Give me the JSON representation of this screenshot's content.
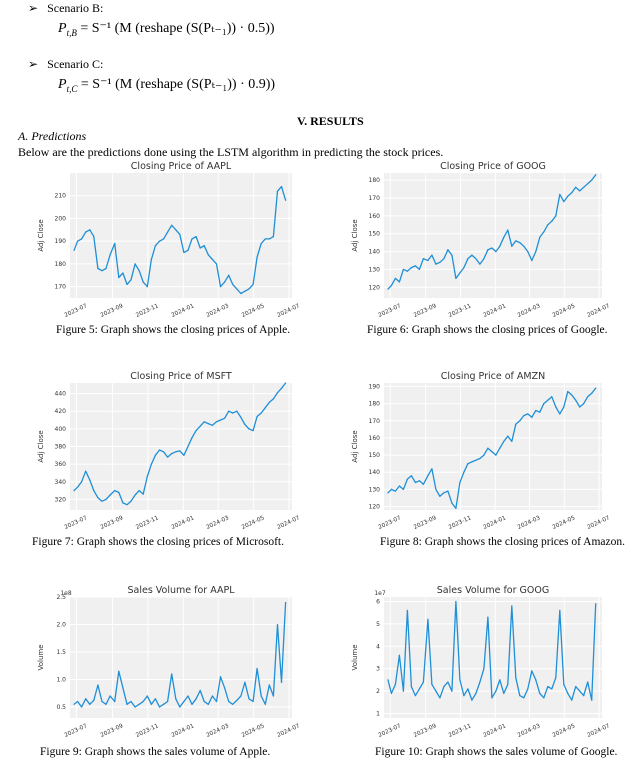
{
  "scenarios": [
    {
      "bullet": "➢",
      "label": "Scenario B:",
      "eq_lhs": "P",
      "eq_lhs_sub": "t,B",
      "eq_rhs": "= S⁻¹ (M (reshape (S(Pₜ₋₁)) · 0.5))"
    },
    {
      "bullet": "➢",
      "label": "Scenario C:",
      "eq_lhs": "P",
      "eq_lhs_sub": "t,C",
      "eq_rhs": "= S⁻¹ (M (reshape (S(Pₜ₋₁)) · 0.9))"
    }
  ],
  "section_heading": "V. RESULTS",
  "subsection": "A.  Predictions",
  "intro": "Below are the predictions done using the LSTM algorithm in predicting the stock prices.",
  "x_ticks": [
    "2023-07",
    "2023-09",
    "2023-11",
    "2024-01",
    "2024-03",
    "2024-05",
    "2024-07"
  ],
  "colors": {
    "line": "#1f8fd6",
    "panel": "#f0f0f0",
    "grid": "#ffffff",
    "text": "#333333"
  },
  "captions": [
    "Figure 5: Graph shows the closing prices of Apple.",
    "Figure 6: Graph shows the closing prices of Google.",
    "Figure 7: Graph shows the closing prices of Microsoft.",
    "Figure 8: Graph shows the closing prices of Amazon.",
    "Figure 9: Graph shows the sales volume of Apple.",
    "Figure 10: Graph shows the sales volume of Google."
  ],
  "chart_data": [
    {
      "type": "line",
      "title": "Closing Price of AAPL",
      "ylabel": "Adj Close",
      "xlabel": "",
      "ylim": [
        165,
        220
      ],
      "yticks": [
        170,
        180,
        190,
        200,
        210
      ],
      "multiplier": "",
      "x": [
        "2023-06-27",
        "2023-07-03",
        "2023-07-10",
        "2023-07-17",
        "2023-07-24",
        "2023-07-31",
        "2023-08-07",
        "2023-08-14",
        "2023-08-21",
        "2023-08-28",
        "2023-09-05",
        "2023-09-12",
        "2023-09-19",
        "2023-09-26",
        "2023-10-03",
        "2023-10-10",
        "2023-10-17",
        "2023-10-24",
        "2023-10-31",
        "2023-11-07",
        "2023-11-14",
        "2023-11-21",
        "2023-11-28",
        "2023-12-05",
        "2023-12-12",
        "2023-12-19",
        "2023-12-26",
        "2024-01-02",
        "2024-01-09",
        "2024-01-16",
        "2024-01-23",
        "2024-01-30",
        "2024-02-06",
        "2024-02-13",
        "2024-02-20",
        "2024-02-27",
        "2024-03-05",
        "2024-03-12",
        "2024-03-19",
        "2024-03-26",
        "2024-04-02",
        "2024-04-09",
        "2024-04-16",
        "2024-04-23",
        "2024-04-30",
        "2024-05-07",
        "2024-05-14",
        "2024-05-21",
        "2024-05-28",
        "2024-06-04",
        "2024-06-11",
        "2024-06-18",
        "2024-06-25"
      ],
      "values": [
        186,
        190,
        191,
        194,
        195,
        192,
        178,
        177,
        178,
        184,
        189,
        174,
        176,
        171,
        173,
        180,
        177,
        172,
        170,
        182,
        188,
        190,
        191,
        194,
        197,
        195,
        193,
        185,
        186,
        191,
        192,
        187,
        188,
        184,
        182,
        180,
        170,
        172,
        175,
        171,
        169,
        167,
        168,
        169,
        171,
        183,
        189,
        191,
        191,
        192,
        212,
        214,
        208
      ]
    },
    {
      "type": "line",
      "title": "Closing Price of GOOG",
      "ylabel": "Adj Close",
      "xlabel": "",
      "ylim": [
        114,
        184
      ],
      "yticks": [
        120,
        130,
        140,
        150,
        160,
        170,
        180
      ],
      "multiplier": "",
      "x": [
        "2023-06-27",
        "2023-07-03",
        "2023-07-10",
        "2023-07-17",
        "2023-07-24",
        "2023-07-31",
        "2023-08-07",
        "2023-08-14",
        "2023-08-21",
        "2023-08-28",
        "2023-09-05",
        "2023-09-12",
        "2023-09-19",
        "2023-09-26",
        "2023-10-03",
        "2023-10-10",
        "2023-10-17",
        "2023-10-24",
        "2023-10-31",
        "2023-11-07",
        "2023-11-14",
        "2023-11-21",
        "2023-11-28",
        "2023-12-05",
        "2023-12-12",
        "2023-12-19",
        "2023-12-26",
        "2024-01-02",
        "2024-01-09",
        "2024-01-16",
        "2024-01-23",
        "2024-01-30",
        "2024-02-06",
        "2024-02-13",
        "2024-02-20",
        "2024-02-27",
        "2024-03-05",
        "2024-03-12",
        "2024-03-19",
        "2024-03-26",
        "2024-04-02",
        "2024-04-09",
        "2024-04-16",
        "2024-04-23",
        "2024-04-30",
        "2024-05-07",
        "2024-05-14",
        "2024-05-21",
        "2024-05-28",
        "2024-06-04",
        "2024-06-11",
        "2024-06-18",
        "2024-06-25"
      ],
      "values": [
        119,
        121,
        125,
        123,
        130,
        129,
        131,
        132,
        130,
        136,
        135,
        138,
        133,
        134,
        136,
        141,
        138,
        125,
        128,
        131,
        136,
        138,
        136,
        133,
        136,
        141,
        142,
        140,
        143,
        148,
        152,
        143,
        146,
        145,
        143,
        140,
        135,
        140,
        148,
        151,
        155,
        157,
        160,
        172,
        168,
        171,
        173,
        176,
        174,
        176,
        178,
        180,
        183
      ]
    },
    {
      "type": "line",
      "title": "Closing Price of MSFT",
      "ylabel": "Adj Close",
      "xlabel": "",
      "ylim": [
        308,
        452
      ],
      "yticks": [
        320,
        340,
        360,
        380,
        400,
        420,
        440
      ],
      "multiplier": "",
      "x": [
        "2023-06-27",
        "2023-07-03",
        "2023-07-10",
        "2023-07-17",
        "2023-07-24",
        "2023-07-31",
        "2023-08-07",
        "2023-08-14",
        "2023-08-21",
        "2023-08-28",
        "2023-09-05",
        "2023-09-12",
        "2023-09-19",
        "2023-09-26",
        "2023-10-03",
        "2023-10-10",
        "2023-10-17",
        "2023-10-24",
        "2023-10-31",
        "2023-11-07",
        "2023-11-14",
        "2023-11-21",
        "2023-11-28",
        "2023-12-05",
        "2023-12-12",
        "2023-12-19",
        "2023-12-26",
        "2024-01-02",
        "2024-01-09",
        "2024-01-16",
        "2024-01-23",
        "2024-01-30",
        "2024-02-06",
        "2024-02-13",
        "2024-02-20",
        "2024-02-27",
        "2024-03-05",
        "2024-03-12",
        "2024-03-19",
        "2024-03-26",
        "2024-04-02",
        "2024-04-09",
        "2024-04-16",
        "2024-04-23",
        "2024-04-30",
        "2024-05-07",
        "2024-05-14",
        "2024-05-21",
        "2024-05-28",
        "2024-06-04",
        "2024-06-11",
        "2024-06-18",
        "2024-06-25"
      ],
      "values": [
        330,
        334,
        340,
        352,
        342,
        330,
        322,
        318,
        320,
        325,
        330,
        328,
        316,
        314,
        318,
        325,
        330,
        326,
        346,
        360,
        370,
        376,
        374,
        368,
        372,
        374,
        375,
        370,
        380,
        390,
        398,
        403,
        408,
        406,
        404,
        408,
        410,
        412,
        420,
        418,
        420,
        413,
        405,
        400,
        398,
        414,
        418,
        424,
        430,
        434,
        441,
        446,
        452
      ]
    },
    {
      "type": "line",
      "title": "Closing Price of AMZN",
      "ylabel": "Adj Close",
      "xlabel": "",
      "ylim": [
        118,
        192
      ],
      "yticks": [
        120,
        130,
        140,
        150,
        160,
        170,
        180,
        190
      ],
      "multiplier": "",
      "x": [
        "2023-06-27",
        "2023-07-03",
        "2023-07-10",
        "2023-07-17",
        "2023-07-24",
        "2023-07-31",
        "2023-08-07",
        "2023-08-14",
        "2023-08-21",
        "2023-08-28",
        "2023-09-05",
        "2023-09-12",
        "2023-09-19",
        "2023-09-26",
        "2023-10-03",
        "2023-10-10",
        "2023-10-17",
        "2023-10-24",
        "2023-10-31",
        "2023-11-07",
        "2023-11-14",
        "2023-11-21",
        "2023-11-28",
        "2023-12-05",
        "2023-12-12",
        "2023-12-19",
        "2023-12-26",
        "2024-01-02",
        "2024-01-09",
        "2024-01-16",
        "2024-01-23",
        "2024-01-30",
        "2024-02-06",
        "2024-02-13",
        "2024-02-20",
        "2024-02-27",
        "2024-03-05",
        "2024-03-12",
        "2024-03-19",
        "2024-03-26",
        "2024-04-02",
        "2024-04-09",
        "2024-04-16",
        "2024-04-23",
        "2024-04-30",
        "2024-05-07",
        "2024-05-14",
        "2024-05-21",
        "2024-05-28",
        "2024-06-04",
        "2024-06-11",
        "2024-06-18",
        "2024-06-25"
      ],
      "values": [
        128,
        130,
        129,
        132,
        130,
        136,
        138,
        134,
        135,
        133,
        138,
        142,
        130,
        126,
        128,
        129,
        122,
        119,
        134,
        140,
        145,
        146,
        147,
        148,
        150,
        154,
        152,
        150,
        154,
        158,
        161,
        158,
        168,
        170,
        173,
        174,
        172,
        176,
        175,
        180,
        182,
        184,
        178,
        174,
        178,
        187,
        185,
        182,
        178,
        180,
        184,
        186,
        189
      ]
    },
    {
      "type": "line",
      "title": "Sales Volume for AAPL",
      "ylabel": "Volume",
      "xlabel": "",
      "ylim": [
        0.3,
        2.5
      ],
      "yticks": [
        0.5,
        1.0,
        1.5,
        2.0,
        2.5
      ],
      "multiplier": "1e8",
      "x": [
        "2023-06-27",
        "2023-07-03",
        "2023-07-10",
        "2023-07-17",
        "2023-07-24",
        "2023-07-31",
        "2023-08-07",
        "2023-08-14",
        "2023-08-21",
        "2023-08-28",
        "2023-09-05",
        "2023-09-12",
        "2023-09-19",
        "2023-09-26",
        "2023-10-03",
        "2023-10-10",
        "2023-10-17",
        "2023-10-24",
        "2023-10-31",
        "2023-11-07",
        "2023-11-14",
        "2023-11-21",
        "2023-11-28",
        "2023-12-05",
        "2023-12-12",
        "2023-12-19",
        "2023-12-26",
        "2024-01-02",
        "2024-01-09",
        "2024-01-16",
        "2024-01-23",
        "2024-01-30",
        "2024-02-06",
        "2024-02-13",
        "2024-02-20",
        "2024-02-27",
        "2024-03-05",
        "2024-03-12",
        "2024-03-19",
        "2024-03-26",
        "2024-04-02",
        "2024-04-09",
        "2024-04-16",
        "2024-04-23",
        "2024-04-30",
        "2024-05-07",
        "2024-05-14",
        "2024-05-21",
        "2024-05-28",
        "2024-06-04",
        "2024-06-11",
        "2024-06-18",
        "2024-06-25"
      ],
      "values": [
        0.55,
        0.6,
        0.5,
        0.65,
        0.55,
        0.62,
        0.9,
        0.6,
        0.55,
        0.7,
        0.6,
        1.15,
        0.85,
        0.55,
        0.6,
        0.5,
        0.55,
        0.6,
        0.7,
        0.55,
        0.65,
        0.5,
        0.55,
        0.6,
        1.1,
        0.65,
        0.5,
        0.6,
        0.7,
        0.55,
        0.65,
        0.8,
        0.6,
        0.55,
        0.7,
        0.6,
        1.05,
        0.85,
        0.6,
        0.55,
        0.62,
        0.7,
        0.95,
        0.65,
        0.6,
        1.2,
        0.7,
        0.55,
        0.9,
        0.7,
        2.0,
        0.95,
        2.4
      ]
    },
    {
      "type": "line",
      "title": "Sales Volume for GOOG",
      "ylabel": "Volume",
      "xlabel": "",
      "ylim": [
        0.8,
        6.2
      ],
      "yticks": [
        1,
        2,
        3,
        4,
        5,
        6
      ],
      "multiplier": "1e7",
      "x": [
        "2023-06-27",
        "2023-07-03",
        "2023-07-10",
        "2023-07-17",
        "2023-07-24",
        "2023-07-31",
        "2023-08-07",
        "2023-08-14",
        "2023-08-21",
        "2023-08-28",
        "2023-09-05",
        "2023-09-12",
        "2023-09-19",
        "2023-09-26",
        "2023-10-03",
        "2023-10-10",
        "2023-10-17",
        "2023-10-24",
        "2023-10-31",
        "2023-11-07",
        "2023-11-14",
        "2023-11-21",
        "2023-11-28",
        "2023-12-05",
        "2023-12-12",
        "2023-12-19",
        "2023-12-26",
        "2024-01-02",
        "2024-01-09",
        "2024-01-16",
        "2024-01-23",
        "2024-01-30",
        "2024-02-06",
        "2024-02-13",
        "2024-02-20",
        "2024-02-27",
        "2024-03-05",
        "2024-03-12",
        "2024-03-19",
        "2024-03-26",
        "2024-04-02",
        "2024-04-09",
        "2024-04-16",
        "2024-04-23",
        "2024-04-30",
        "2024-05-07",
        "2024-05-14",
        "2024-05-21",
        "2024-05-28",
        "2024-06-04",
        "2024-06-11",
        "2024-06-18",
        "2024-06-25"
      ],
      "values": [
        2.5,
        1.9,
        2.3,
        3.6,
        2.0,
        5.6,
        2.2,
        1.8,
        2.1,
        2.4,
        5.2,
        2.3,
        2.0,
        1.7,
        2.2,
        2.4,
        2.0,
        6.0,
        2.5,
        1.8,
        2.1,
        1.6,
        1.9,
        2.4,
        3.0,
        5.3,
        1.7,
        2.0,
        2.5,
        1.9,
        2.3,
        5.8,
        2.6,
        1.8,
        1.7,
        2.1,
        2.9,
        2.5,
        1.9,
        1.7,
        2.2,
        2.1,
        2.6,
        5.6,
        2.3,
        1.9,
        1.6,
        2.2,
        2.0,
        1.8,
        2.4,
        1.6,
        5.9
      ]
    }
  ]
}
